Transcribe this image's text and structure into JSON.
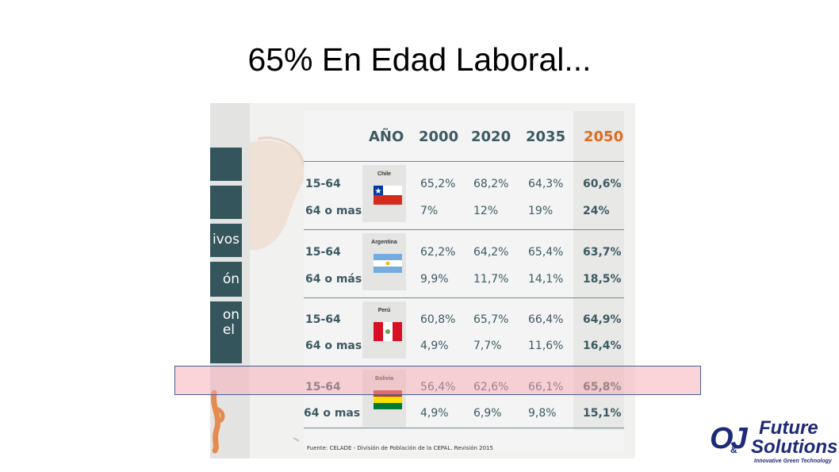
{
  "title": "65% En Edad Laboral...",
  "side_labels": [
    "",
    "",
    "ivos",
    "ón",
    "on\nel"
  ],
  "table": {
    "header_label": "AÑO",
    "years": [
      "2000",
      "2020",
      "2035",
      "2050"
    ],
    "rows": [
      {
        "country": "Chile",
        "flag": "chile-flag-icon",
        "labels": [
          "15-64",
          "64 o mas"
        ],
        "r1": [
          "65,2%",
          "68,2%",
          "64,3%",
          "60,6%"
        ],
        "r2": [
          "7%",
          "12%",
          "19%",
          "24%"
        ]
      },
      {
        "country": "Argentina",
        "flag": "argentina-flag-icon",
        "labels": [
          "15-64",
          "64 o más"
        ],
        "r1": [
          "62,2%",
          "64,2%",
          "65,4%",
          "63,7%"
        ],
        "r2": [
          "9,9%",
          "11,7%",
          "14,1%",
          "18,5%"
        ]
      },
      {
        "country": "Perú",
        "flag": "peru-flag-icon",
        "labels": [
          "15-64",
          "64 o mas"
        ],
        "r1": [
          "60,8%",
          "65,7%",
          "66,4%",
          "64,9%"
        ],
        "r2": [
          "4,9%",
          "7,7%",
          "11,6%",
          "16,4%"
        ]
      },
      {
        "country": "Bolivia",
        "flag": "bolivia-flag-icon",
        "labels": [
          "15-64",
          "64 o mas"
        ],
        "r1": [
          "56,4%",
          "62,6%",
          "66,1%",
          "65,8%"
        ],
        "r2": [
          "4,9%",
          "6,9%",
          "9,8%",
          "15,1%"
        ]
      }
    ],
    "source": "Fuente: CELADE - División de Población de la CEPAL. Revisión 2015"
  },
  "colors": {
    "accent_2050": "#e06a22",
    "table_text": "#3c5a62",
    "highlight": "#f8aab4"
  },
  "logo": {
    "mark": "OJ",
    "amp": "&",
    "line1": "Future",
    "line2": "Solutions",
    "tagline": "Innovative Green Technology"
  }
}
